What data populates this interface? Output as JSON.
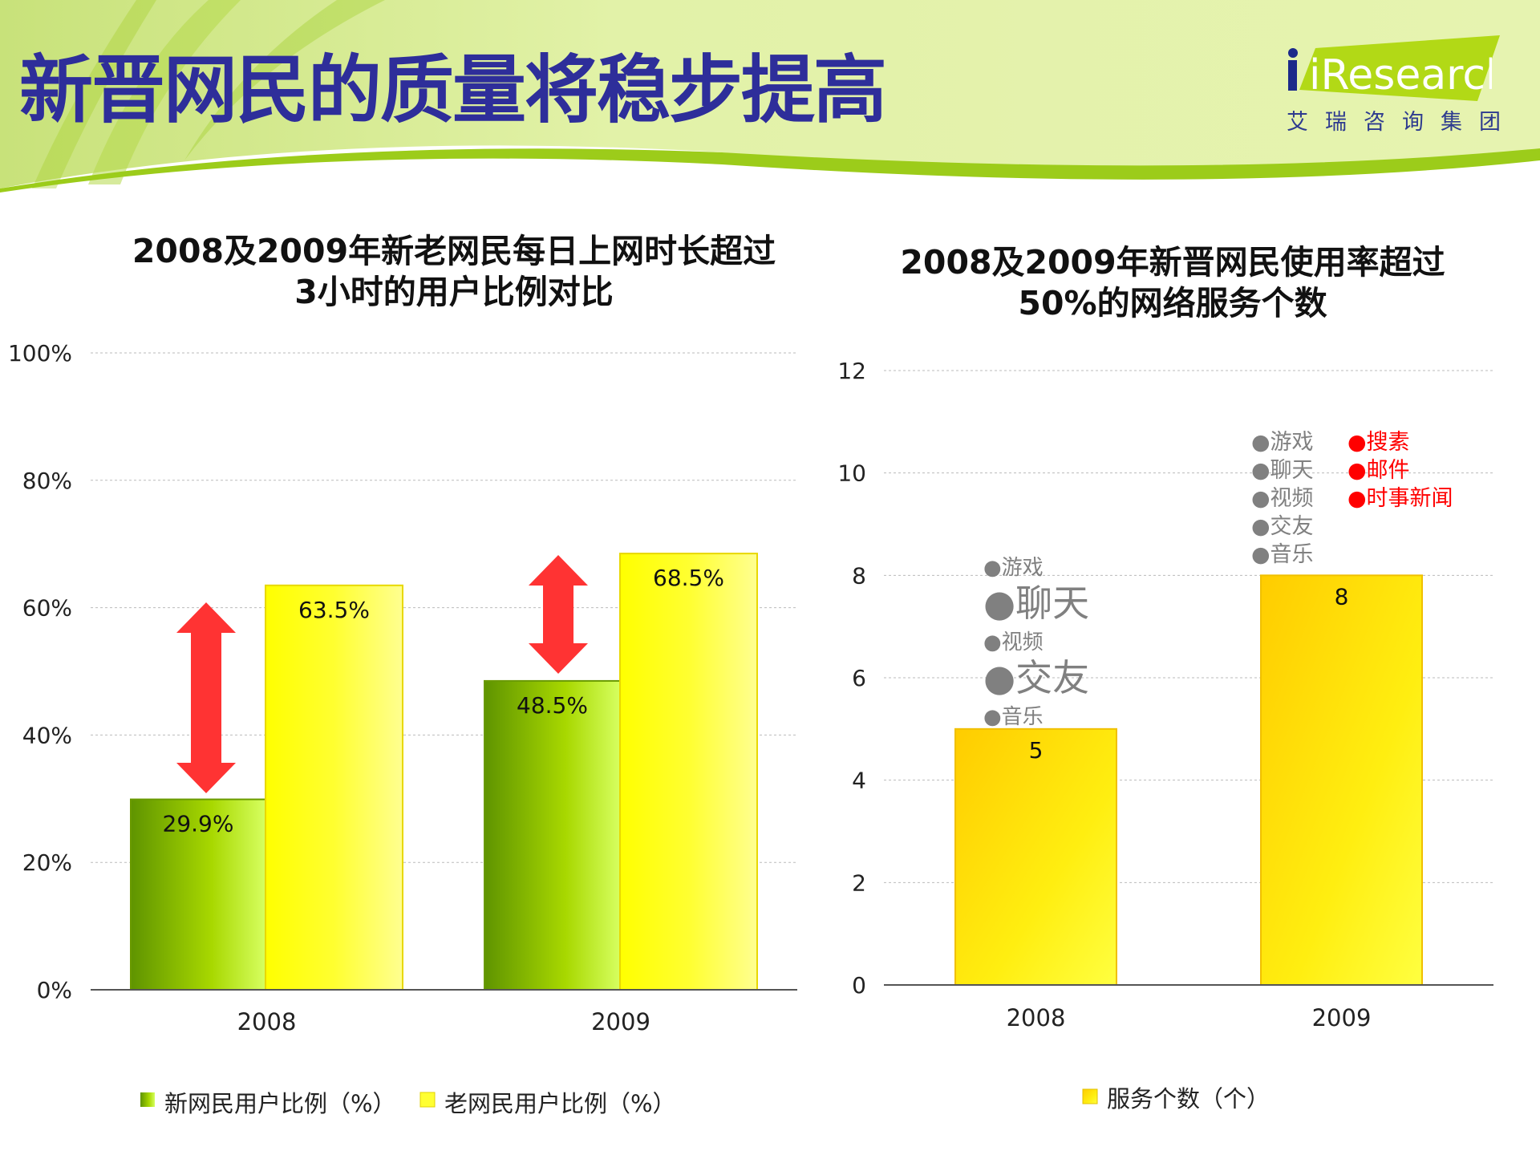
{
  "header": {
    "title": "新晋网民的质量将稳步提高",
    "logo_text": "iResearch",
    "logo_subtitle": "艾瑞咨询集团"
  },
  "colors": {
    "title": "#2e2e9a",
    "green": "#7ab800",
    "yellow": "#ffff00",
    "arrow": "#ff3333",
    "annotation_red": "#ff0000",
    "annotation_gray": "#808080"
  },
  "chart_data": [
    {
      "type": "bar",
      "title_line1": "2008及2009年新老网民每日上网时长超过",
      "title_line2": "3小时的用户比例对比",
      "categories": [
        "2008",
        "2009"
      ],
      "series": [
        {
          "name": "新网民用户比例（%）",
          "values": [
            29.9,
            48.5
          ],
          "labels": [
            "29.9%",
            "48.5%"
          ]
        },
        {
          "name": "老网民用户比例（%）",
          "values": [
            63.5,
            68.5
          ],
          "labels": [
            "63.5%",
            "68.5%"
          ]
        }
      ],
      "yticks": [
        "0%",
        "20%",
        "40%",
        "60%",
        "80%",
        "100%"
      ],
      "ylim": [
        0,
        100
      ],
      "grid": true,
      "legend": "bottom"
    },
    {
      "type": "bar",
      "title_line1": "2008及2009年新晋网民使用率超过",
      "title_line2": "50%的网络服务个数",
      "categories": [
        "2008",
        "2009"
      ],
      "series": [
        {
          "name": "服务个数（个）",
          "values": [
            5,
            8
          ],
          "labels": [
            "5",
            "8"
          ]
        }
      ],
      "yticks": [
        "0",
        "2",
        "4",
        "6",
        "8",
        "10",
        "12"
      ],
      "ylim": [
        0,
        12
      ],
      "grid": true,
      "legend": "bottom",
      "annotations": {
        "2008": [
          {
            "text": "●游戏",
            "emphasis": false
          },
          {
            "text": "●聊天",
            "emphasis": true
          },
          {
            "text": "●视频",
            "emphasis": false
          },
          {
            "text": "●交友",
            "emphasis": true
          },
          {
            "text": "●音乐",
            "emphasis": false
          }
        ],
        "2009_common": [
          "●游戏",
          "●聊天",
          "●视频",
          "●交友",
          "●音乐"
        ],
        "2009_new": [
          "●搜素",
          "●邮件",
          "●时事新闻"
        ]
      }
    }
  ]
}
